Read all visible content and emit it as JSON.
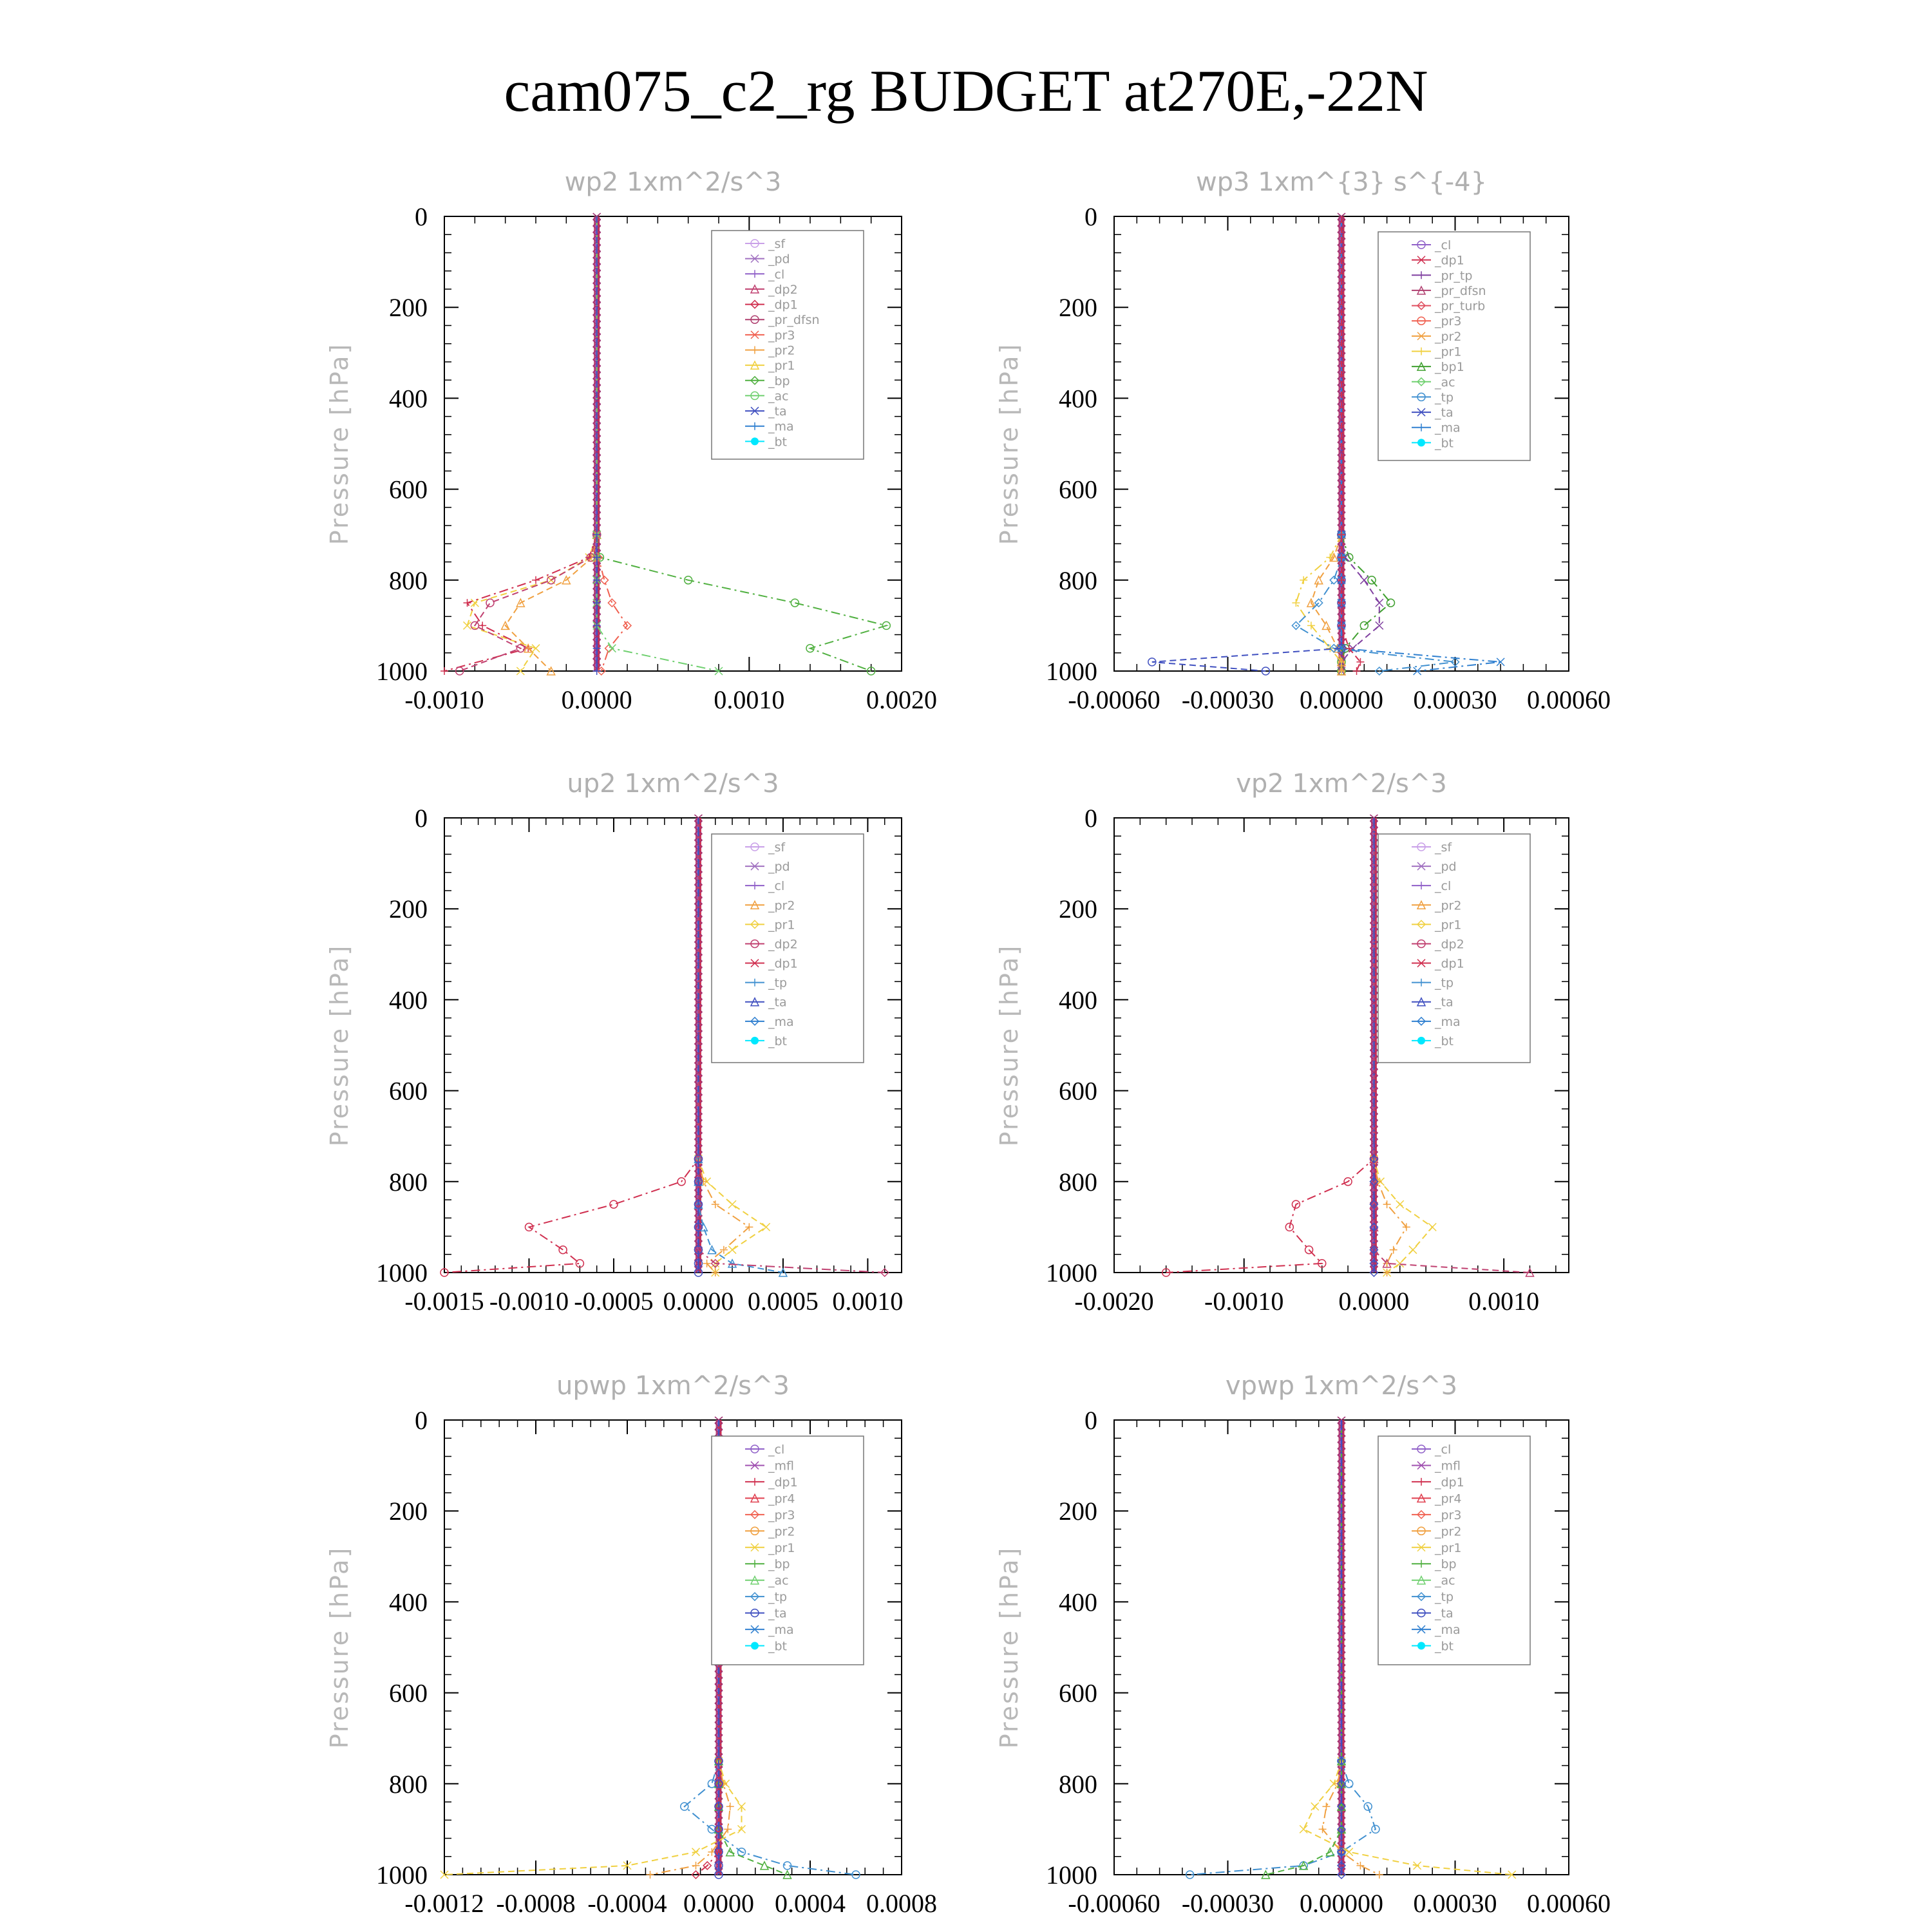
{
  "title": "cam075_c2_rg  BUDGET at270E,-22N",
  "colors": {
    "_sf": "#c9a0e8",
    "_pd": "#a070c0",
    "_cl": "#9060c8",
    "_mfl": "#a050b0",
    "_dp2": "#c04070",
    "_dp1": "#d03050",
    "_pr_tp": "#8040a0",
    "_pr_dfsn": "#b04070",
    "_pr_turb": "#e05060",
    "_pr4": "#e04050",
    "_pr3": "#f06050",
    "_pr2": "#f0a040",
    "_pr1": "#f0d040",
    "_bp": "#50b040",
    "_bp1": "#40a030",
    "_ac": "#70d070",
    "_tp": "#4090d0",
    "_ta": "#4050c0",
    "_ma": "#3080d0",
    "_bt": "#00e8ff"
  },
  "chart_data": [
    {
      "type": "line",
      "title": "wp2   1xm^2/s^3",
      "ylabel": "Pressure [hPa]",
      "ylim": [
        1000,
        0
      ],
      "xlim": [
        -0.001,
        0.002
      ],
      "xticks": [
        "-0.0010",
        "0.0000",
        "0.0010",
        "0.0020"
      ],
      "xtick_values": [
        -0.001,
        0.0,
        0.001,
        0.002
      ],
      "yticks": [
        "0",
        "200",
        "400",
        "600",
        "800",
        "1000"
      ],
      "pressure": [
        0,
        700,
        750,
        800,
        850,
        900,
        950,
        1000
      ],
      "legend": [
        "_sf",
        "_pd",
        "_cl",
        "_dp2",
        "_dp1",
        "_pr_dfsn",
        "_pr3",
        "_pr2",
        "_pr1",
        "_bp",
        "_ac",
        "_ta",
        "_ma",
        "_bt"
      ],
      "series": [
        {
          "name": "_bp",
          "values": [
            0,
            0,
            2e-05,
            0.0006,
            0.0013,
            0.0019,
            0.0014,
            0.0018
          ]
        },
        {
          "name": "_pr1",
          "values": [
            0,
            0,
            -5e-05,
            -0.0003,
            -0.0008,
            -0.00085,
            -0.0004,
            -0.0005
          ]
        },
        {
          "name": "_dp1",
          "values": [
            0,
            0,
            -5e-05,
            -0.0004,
            -0.00085,
            -0.00075,
            -0.00045,
            -0.001
          ]
        },
        {
          "name": "_pr2",
          "values": [
            0,
            0,
            -3e-05,
            -0.0002,
            -0.0005,
            -0.0006,
            -0.00045,
            -0.0003
          ]
        },
        {
          "name": "_pr3",
          "values": [
            0,
            0,
            1e-05,
            5e-05,
            0.0001,
            0.0002,
            8e-05,
            3e-05
          ]
        },
        {
          "name": "_dp2",
          "values": [
            0,
            0,
            -4e-05,
            -0.0003,
            -0.0007,
            -0.0008,
            -0.0005,
            -0.0009
          ]
        },
        {
          "name": "_ac",
          "values": [
            0,
            0,
            0,
            0,
            0,
            0,
            0.0001,
            0.0008
          ]
        },
        {
          "name": "_ta",
          "values": [
            0,
            0,
            0,
            0,
            0,
            0,
            0,
            0
          ]
        }
      ]
    },
    {
      "type": "line",
      "title": "wp3   1xm^{3} s^{-4}",
      "ylabel": "Pressure [hPa]",
      "ylim": [
        1000,
        0
      ],
      "xlim": [
        -0.0006,
        0.0006
      ],
      "xticks": [
        "-0.00060",
        "-0.00030",
        "0.00000",
        "0.00030",
        "0.00060"
      ],
      "xtick_values": [
        -0.0006,
        -0.0003,
        0.0,
        0.0003,
        0.0006
      ],
      "yticks": [
        "0",
        "200",
        "400",
        "600",
        "800",
        "1000"
      ],
      "pressure": [
        0,
        700,
        750,
        800,
        850,
        900,
        950,
        980,
        1000
      ],
      "legend": [
        "_cl",
        "_dp1",
        "_pr_tp",
        "_pr_dfsn",
        "_pr_turb",
        "_pr3",
        "_pr2",
        "_pr1",
        "_bp1",
        "_ac",
        "_tp",
        "_ta",
        "_ma",
        "_bt"
      ],
      "series": [
        {
          "name": "_bp1",
          "values": [
            0,
            0,
            2e-05,
            8e-05,
            0.00013,
            6e-05,
            1e-05,
            0,
            0
          ]
        },
        {
          "name": "_pr_tp",
          "values": [
            0,
            0,
            1e-05,
            6e-05,
            0.0001,
            0.0001,
            3e-05,
            0,
            0
          ]
        },
        {
          "name": "_pr1",
          "values": [
            0,
            0,
            -3e-05,
            -0.0001,
            -0.00012,
            -8e-05,
            -3e-05,
            0,
            0
          ]
        },
        {
          "name": "_pr2",
          "values": [
            0,
            0,
            -2e-05,
            -6e-05,
            -8e-05,
            -4e-05,
            -1e-05,
            0,
            0
          ]
        },
        {
          "name": "_tp",
          "values": [
            0,
            0,
            0,
            -2e-05,
            -6e-05,
            -0.00012,
            -2e-05,
            0.0003,
            0.0001
          ]
        },
        {
          "name": "_ta",
          "values": [
            0,
            0,
            0,
            0,
            0,
            0,
            0,
            -0.0005,
            -0.0002
          ]
        },
        {
          "name": "_ma",
          "values": [
            0,
            0,
            0,
            0,
            0,
            0,
            0,
            0.00042,
            0.0002
          ]
        },
        {
          "name": "_dp1",
          "values": [
            0,
            0,
            0,
            0,
            0,
            0,
            2e-05,
            5e-05,
            4e-05
          ]
        }
      ]
    },
    {
      "type": "line",
      "title": "up2   1xm^2/s^3",
      "ylabel": "Pressure [hPa]",
      "ylim": [
        1000,
        0
      ],
      "xlim": [
        -0.0015,
        0.0012
      ],
      "xticks": [
        "-0.0015",
        "-0.0010",
        "-0.0005",
        "0.0000",
        "0.0005",
        "0.0010"
      ],
      "xtick_values": [
        -0.0015,
        -0.001,
        -0.0005,
        0.0,
        0.0005,
        0.001
      ],
      "yticks": [
        "0",
        "200",
        "400",
        "600",
        "800",
        "1000"
      ],
      "pressure": [
        0,
        750,
        800,
        850,
        900,
        950,
        980,
        1000
      ],
      "legend": [
        "_sf",
        "_pd",
        "_cl",
        "_pr2",
        "_pr1",
        "_dp2",
        "_dp1",
        "_tp",
        "_ta",
        "_ma",
        "_bt"
      ],
      "series": [
        {
          "name": "_dp1",
          "values": [
            0,
            0,
            -0.0001,
            -0.0005,
            -0.001,
            -0.0008,
            -0.0007,
            -0.0015
          ]
        },
        {
          "name": "_pr1",
          "values": [
            0,
            0,
            5e-05,
            0.0002,
            0.0004,
            0.0002,
            0.0001,
            0.0001
          ]
        },
        {
          "name": "_pr2",
          "values": [
            0,
            0,
            3e-05,
            0.0001,
            0.0003,
            0.00015,
            5e-05,
            0.0001
          ]
        },
        {
          "name": "_tp",
          "values": [
            0,
            0,
            0,
            0,
            3e-05,
            8e-05,
            0.0002,
            0.0005
          ]
        },
        {
          "name": "_dp2",
          "values": [
            0,
            0,
            0,
            0,
            0,
            0,
            0.0001,
            0.0011
          ]
        },
        {
          "name": "_ta",
          "values": [
            0,
            0,
            0,
            0,
            0,
            0,
            0,
            0
          ]
        }
      ]
    },
    {
      "type": "line",
      "title": "vp2   1xm^2/s^3",
      "ylabel": "Pressure [hPa]",
      "ylim": [
        1000,
        0
      ],
      "xlim": [
        -0.002,
        0.0015
      ],
      "xticks": [
        "-0.0020",
        "-0.0010",
        "0.0000",
        "0.0010"
      ],
      "xtick_values": [
        -0.002,
        -0.001,
        0.0,
        0.001
      ],
      "yticks": [
        "0",
        "200",
        "400",
        "600",
        "800",
        "1000"
      ],
      "pressure": [
        0,
        750,
        800,
        850,
        900,
        950,
        980,
        1000
      ],
      "legend": [
        "_sf",
        "_pd",
        "_cl",
        "_pr2",
        "_pr1",
        "_dp2",
        "_dp1",
        "_tp",
        "_ta",
        "_ma",
        "_bt"
      ],
      "series": [
        {
          "name": "_dp1",
          "values": [
            0,
            0,
            -0.0002,
            -0.0006,
            -0.00065,
            -0.0005,
            -0.0004,
            -0.0016
          ]
        },
        {
          "name": "_pr1",
          "values": [
            0,
            0,
            5e-05,
            0.0002,
            0.00045,
            0.0003,
            0.0002,
            0.0001
          ]
        },
        {
          "name": "_pr2",
          "values": [
            0,
            0,
            3e-05,
            0.0001,
            0.00025,
            0.00015,
            0.0001,
            0.0001
          ]
        },
        {
          "name": "_dp2",
          "values": [
            0,
            0,
            0,
            0,
            0,
            0,
            0.0001,
            0.0012
          ]
        },
        {
          "name": "_ta",
          "values": [
            0,
            0,
            0,
            0,
            0,
            0,
            0,
            0
          ]
        }
      ]
    },
    {
      "type": "line",
      "title": "upwp   1xm^2/s^3",
      "ylabel": "Pressure [hPa]",
      "ylim": [
        1000,
        0
      ],
      "xlim": [
        -0.0012,
        0.0008
      ],
      "xticks": [
        "-0.0012",
        "-0.0008",
        "-0.0004",
        "0.0000",
        "0.0004",
        "0.0008"
      ],
      "xtick_values": [
        -0.0012,
        -0.0008,
        -0.0004,
        0.0,
        0.0004,
        0.0008
      ],
      "yticks": [
        "0",
        "200",
        "400",
        "600",
        "800",
        "1000"
      ],
      "pressure": [
        0,
        750,
        800,
        850,
        900,
        950,
        980,
        1000
      ],
      "legend": [
        "_cl",
        "_mfl",
        "_dp1",
        "_pr4",
        "_pr3",
        "_pr2",
        "_pr1",
        "_bp",
        "_ac",
        "_tp",
        "_ta",
        "_ma",
        "_bt"
      ],
      "series": [
        {
          "name": "_tp",
          "values": [
            0,
            0,
            -3e-05,
            -0.00015,
            -3e-05,
            0.0001,
            0.0003,
            0.0006
          ]
        },
        {
          "name": "_pr1",
          "values": [
            0,
            0,
            3e-05,
            0.0001,
            0.0001,
            -0.0001,
            -0.0004,
            -0.0012
          ]
        },
        {
          "name": "_pr2",
          "values": [
            0,
            0,
            2e-05,
            5e-05,
            4e-05,
            -3e-05,
            -0.0001,
            -0.0003
          ]
        },
        {
          "name": "_bp",
          "values": [
            0,
            0,
            0,
            0,
            0,
            5e-05,
            0.0002,
            0.0003
          ]
        },
        {
          "name": "_dp1",
          "values": [
            0,
            0,
            0,
            0,
            0,
            0,
            -5e-05,
            -0.0001
          ]
        },
        {
          "name": "_ta",
          "values": [
            0,
            0,
            0,
            0,
            0,
            0,
            0,
            0
          ]
        }
      ]
    },
    {
      "type": "line",
      "title": "vpwp   1xm^2/s^3",
      "ylabel": "Pressure [hPa]",
      "ylim": [
        1000,
        0
      ],
      "xlim": [
        -0.0006,
        0.0006
      ],
      "xticks": [
        "-0.00060",
        "-0.00030",
        "0.00000",
        "0.00030",
        "0.00060"
      ],
      "xtick_values": [
        -0.0006,
        -0.0003,
        0.0,
        0.0003,
        0.0006
      ],
      "yticks": [
        "0",
        "200",
        "400",
        "600",
        "800",
        "1000"
      ],
      "pressure": [
        0,
        750,
        800,
        850,
        900,
        950,
        980,
        1000
      ],
      "legend": [
        "_cl",
        "_mfl",
        "_dp1",
        "_pr4",
        "_pr3",
        "_pr2",
        "_pr1",
        "_bp",
        "_ac",
        "_tp",
        "_ta",
        "_ma",
        "_bt"
      ],
      "series": [
        {
          "name": "_tp",
          "values": [
            0,
            0,
            2e-05,
            7e-05,
            9e-05,
            0,
            -0.0001,
            -0.0004
          ]
        },
        {
          "name": "_pr1",
          "values": [
            0,
            0,
            -2e-05,
            -7e-05,
            -0.0001,
            2e-05,
            0.0002,
            0.00045
          ]
        },
        {
          "name": "_pr2",
          "values": [
            0,
            0,
            -1e-05,
            -4e-05,
            -5e-05,
            0,
            5e-05,
            0.0001
          ]
        },
        {
          "name": "_bp",
          "values": [
            0,
            0,
            0,
            0,
            0,
            -3e-05,
            -0.0001,
            -0.0002
          ]
        },
        {
          "name": "_ta",
          "values": [
            0,
            0,
            0,
            0,
            0,
            0,
            0,
            0
          ]
        }
      ]
    }
  ]
}
